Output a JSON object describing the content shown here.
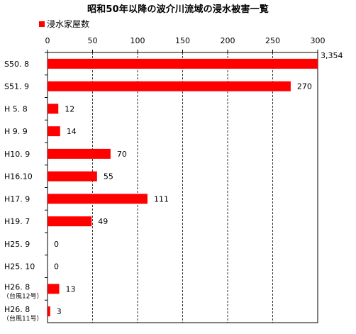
{
  "chart_data": {
    "type": "bar",
    "orientation": "horizontal",
    "title": "昭和50年以降の波介川流域の浸水被害一覧",
    "legend": {
      "label": "浸水家屋数",
      "color": "#ff0000",
      "placement": "top-left"
    },
    "xlim": [
      0,
      300
    ],
    "xticks": [
      "0",
      "50",
      "100",
      "150",
      "200",
      "250",
      "300"
    ],
    "grid": true,
    "categories": [
      {
        "label": "S50. 8",
        "sublabel": ""
      },
      {
        "label": "S51. 9",
        "sublabel": ""
      },
      {
        "label": "H 5. 8",
        "sublabel": ""
      },
      {
        "label": "H 9. 9",
        "sublabel": ""
      },
      {
        "label": "H10. 9",
        "sublabel": ""
      },
      {
        "label": "H16.10",
        "sublabel": ""
      },
      {
        "label": "H17. 9",
        "sublabel": ""
      },
      {
        "label": "H19. 7",
        "sublabel": ""
      },
      {
        "label": "H25. 9",
        "sublabel": ""
      },
      {
        "label": "H25. 10",
        "sublabel": ""
      },
      {
        "label": "H26. 8",
        "sublabel": "（台風12号）"
      },
      {
        "label": "H26. 8",
        "sublabel": "（台風11号）"
      }
    ],
    "series": [
      {
        "color": "#ff0000",
        "values": [
          3354,
          270,
          12,
          14,
          70,
          55,
          111,
          49,
          0,
          0,
          13,
          3
        ],
        "value_labels": [
          "3,354",
          "270",
          "12",
          "14",
          "70",
          "55",
          "111",
          "49",
          "0",
          "0",
          "13",
          "3"
        ]
      }
    ]
  }
}
